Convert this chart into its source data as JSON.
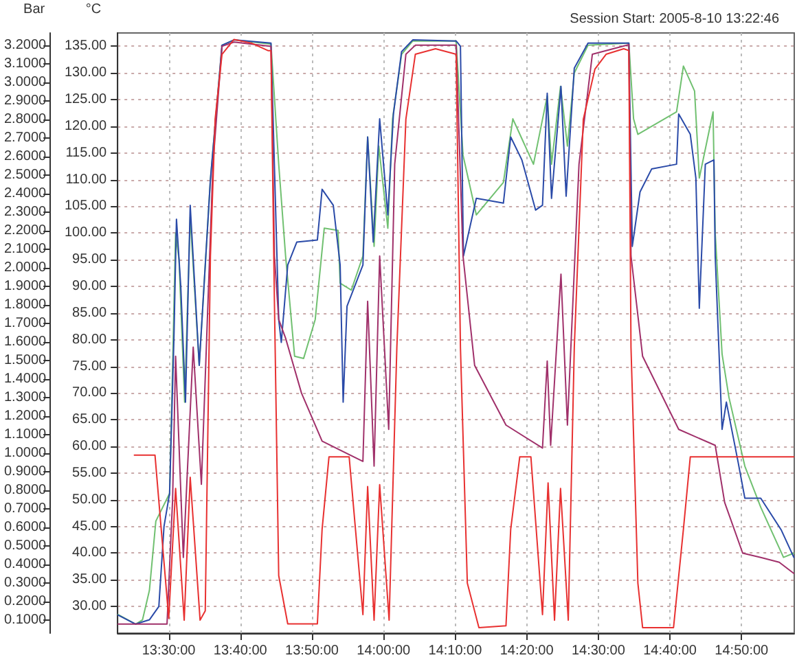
{
  "chart_data": {
    "type": "line",
    "title": "Session Start: 2005-8-10 13:22:46",
    "ylabel": "°C",
    "y2label": "Bar",
    "xlim": [
      13.381,
      14.956
    ],
    "xticks": [
      {
        "value": 13.5,
        "label": "13:30:00"
      },
      {
        "value": 13.666666666666666,
        "label": "13:40:00"
      },
      {
        "value": 13.833333333333334,
        "label": "13:50:00"
      },
      {
        "value": 14,
        "label": "14:00:00"
      },
      {
        "value": 14.166666666666666,
        "label": "14:10:00"
      },
      {
        "value": 14.333333333333334,
        "label": "14:20:00"
      },
      {
        "value": 14.5,
        "label": "14:30:00"
      },
      {
        "value": 14.666666666666666,
        "label": "14:40:00"
      },
      {
        "value": 14.833333333333334,
        "label": "14:50:00"
      }
    ],
    "ylim": [
      25,
      137.5
    ],
    "yticks": [
      {
        "value": 30,
        "label": "30.00"
      },
      {
        "value": 35,
        "label": "35.00"
      },
      {
        "value": 40,
        "label": "40.00"
      },
      {
        "value": 45,
        "label": "45.00"
      },
      {
        "value": 50,
        "label": "50.00"
      },
      {
        "value": 55,
        "label": "55.00"
      },
      {
        "value": 60,
        "label": "60.00"
      },
      {
        "value": 65,
        "label": "65.00"
      },
      {
        "value": 70,
        "label": "70.00"
      },
      {
        "value": 75,
        "label": "75.00"
      },
      {
        "value": 80,
        "label": "80.00"
      },
      {
        "value": 85,
        "label": "85.00"
      },
      {
        "value": 90,
        "label": "90.00"
      },
      {
        "value": 95,
        "label": "95.00"
      },
      {
        "value": 100,
        "label": "100.00"
      },
      {
        "value": 105,
        "label": "105.00"
      },
      {
        "value": 110,
        "label": "110.00"
      },
      {
        "value": 115,
        "label": "115.00"
      },
      {
        "value": 120,
        "label": "120.00"
      },
      {
        "value": 125,
        "label": "125.00"
      },
      {
        "value": 130,
        "label": "130.00"
      },
      {
        "value": 135,
        "label": "135.00"
      }
    ],
    "y2lim": [
      0.03,
      3.265
    ],
    "y2ticks": [
      {
        "value": 0.1,
        "label": "0.1000"
      },
      {
        "value": 0.2,
        "label": "0.2000"
      },
      {
        "value": 0.3,
        "label": "0.3000"
      },
      {
        "value": 0.4,
        "label": "0.4000"
      },
      {
        "value": 0.5,
        "label": "0.5000"
      },
      {
        "value": 0.6,
        "label": "0.6000"
      },
      {
        "value": 0.7,
        "label": "0.7000"
      },
      {
        "value": 0.8,
        "label": "0.8000"
      },
      {
        "value": 0.9,
        "label": "0.9000"
      },
      {
        "value": 1.0,
        "label": "1.0000"
      },
      {
        "value": 1.1,
        "label": "1.1000"
      },
      {
        "value": 1.2,
        "label": "1.2000"
      },
      {
        "value": 1.3,
        "label": "1.3000"
      },
      {
        "value": 1.4,
        "label": "1.4000"
      },
      {
        "value": 1.5,
        "label": "1.5000"
      },
      {
        "value": 1.6,
        "label": "1.6000"
      },
      {
        "value": 1.7,
        "label": "1.7000"
      },
      {
        "value": 1.8,
        "label": "1.8000"
      },
      {
        "value": 1.9,
        "label": "1.9000"
      },
      {
        "value": 2.0,
        "label": "2.0000"
      },
      {
        "value": 2.1,
        "label": "2.1000"
      },
      {
        "value": 2.2,
        "label": "2.2000"
      },
      {
        "value": 2.3,
        "label": "2.3000"
      },
      {
        "value": 2.4,
        "label": "2.4000"
      },
      {
        "value": 2.5,
        "label": "2.5000"
      },
      {
        "value": 2.6,
        "label": "2.6000"
      },
      {
        "value": 2.7,
        "label": "2.7000"
      },
      {
        "value": 2.8,
        "label": "2.8000"
      },
      {
        "value": 2.9,
        "label": "2.9000"
      },
      {
        "value": 3.0,
        "label": "3.0000"
      },
      {
        "value": 3.1,
        "label": "3.1000"
      },
      {
        "value": 3.2,
        "label": "3.2000"
      }
    ],
    "grid": true,
    "marker": "none",
    "line_style": "solid",
    "series": [
      {
        "color": "#70c070",
        "x": [
          13.382,
          13.423,
          13.439,
          13.455,
          13.47,
          13.502,
          13.509,
          13.516,
          13.524,
          13.537,
          13.55,
          13.571,
          13.597,
          13.624,
          13.652,
          13.738,
          13.756,
          13.772,
          13.793,
          13.814,
          13.841,
          13.862,
          13.894,
          13.899,
          13.925,
          13.952,
          13.963,
          13.978,
          13.989,
          14.01,
          14.021,
          14.042,
          14.068,
          14.169,
          14.185,
          14.216,
          14.279,
          14.301,
          14.349,
          14.381,
          14.391,
          14.412,
          14.428,
          14.444,
          14.476,
          14.571,
          14.582,
          14.592,
          14.682,
          14.698,
          14.724,
          14.735,
          14.767,
          14.772,
          14.788,
          14.804,
          14.841,
          14.878,
          14.931,
          14.955
        ],
        "values": [
          28.5,
          26.7,
          27.5,
          33,
          46,
          51.2,
          75,
          100,
          95,
          68.3,
          103,
          75.2,
          110,
          135.2,
          136.2,
          135.4,
          112.9,
          95.7,
          76.9,
          76.5,
          83.8,
          100.9,
          100.5,
          90.6,
          89.3,
          95.7,
          118,
          97.5,
          116.3,
          100.9,
          121.4,
          133.5,
          136,
          136,
          114.6,
          103.4,
          109.5,
          121.4,
          112.9,
          125.7,
          112.9,
          127.5,
          116.3,
          130,
          135.2,
          135.6,
          121.4,
          118.5,
          122.7,
          131.3,
          126.6,
          110.3,
          122.7,
          100,
          77.3,
          69.2,
          56.3,
          48.6,
          39.2,
          40
        ]
      },
      {
        "color": "#2a4aa8",
        "x": [
          13.382,
          13.423,
          13.455,
          13.477,
          13.489,
          13.502,
          13.512,
          13.518,
          13.528,
          13.539,
          13.55,
          13.571,
          13.597,
          13.624,
          13.652,
          13.738,
          13.756,
          13.762,
          13.777,
          13.798,
          13.846,
          13.857,
          13.883,
          13.899,
          13.906,
          13.915,
          13.952,
          13.963,
          13.976,
          13.991,
          14.01,
          14.023,
          14.042,
          14.068,
          14.169,
          14.179,
          14.186,
          14.216,
          14.279,
          14.296,
          14.322,
          14.354,
          14.37,
          14.381,
          14.391,
          14.413,
          14.425,
          14.444,
          14.476,
          14.571,
          14.579,
          14.597,
          14.624,
          14.682,
          14.687,
          14.714,
          14.727,
          14.735,
          14.749,
          14.769,
          14.772,
          14.788,
          14.798,
          14.825,
          14.841,
          14.878,
          14.926,
          14.955
        ],
        "values": [
          28.4,
          26.7,
          27.5,
          30,
          45,
          51.2,
          80,
          102.6,
          90,
          68.3,
          105.2,
          75.2,
          110,
          135.2,
          136.2,
          135.6,
          83.8,
          79.5,
          94,
          98.3,
          98.7,
          108.2,
          105.2,
          94,
          68.3,
          86.3,
          94,
          118,
          98.3,
          121.4,
          103.4,
          122.3,
          134,
          136.2,
          136,
          135,
          95.7,
          106.5,
          105.6,
          118,
          113.7,
          104.3,
          105.2,
          126.2,
          106.5,
          127.5,
          106.9,
          130.9,
          135.6,
          135.6,
          97.5,
          107.7,
          112,
          112.9,
          122.3,
          118.5,
          110.3,
          85.9,
          112.9,
          113.7,
          95.7,
          63.2,
          68.3,
          57.2,
          50.3,
          50.3,
          44.3,
          39.2
        ]
      },
      {
        "color": "#a0306a",
        "x": [
          13.382,
          13.496,
          13.509,
          13.516,
          13.534,
          13.557,
          13.576,
          13.603,
          13.624,
          13.652,
          13.738,
          13.746,
          13.756,
          13.772,
          13.809,
          13.857,
          13.952,
          13.963,
          13.978,
          13.991,
          14.012,
          14.026,
          14.052,
          14.074,
          14.169,
          14.185,
          14.212,
          14.285,
          14.37,
          14.381,
          14.389,
          14.413,
          14.428,
          14.455,
          14.486,
          14.571,
          14.576,
          14.603,
          14.687,
          14.772,
          14.794,
          14.836,
          14.878,
          14.921,
          14.955
        ],
        "values": [
          26.7,
          26.7,
          50,
          76.9,
          39.2,
          78.6,
          52.9,
          112.9,
          135,
          135.8,
          135,
          95.7,
          83.8,
          80.3,
          70,
          61,
          57.2,
          87.2,
          56.3,
          95.7,
          63.2,
          112.9,
          133.5,
          135.2,
          135.2,
          95.7,
          75.2,
          64,
          59.7,
          76,
          60.2,
          92.3,
          64,
          112.9,
          133.5,
          135.3,
          95.7,
          76.9,
          63.2,
          60.2,
          49.5,
          40,
          39.2,
          38.3,
          36.2
        ]
      },
      {
        "color": "#e83030",
        "axis": "y2",
        "x": [
          13.42,
          13.468,
          13.5,
          13.516,
          13.536,
          13.55,
          13.573,
          13.585,
          13.597,
          13.608,
          13.624,
          13.652,
          13.693,
          13.731,
          13.738,
          13.746,
          13.756,
          13.777,
          13.846,
          13.857,
          13.873,
          13.92,
          13.952,
          13.963,
          13.978,
          13.991,
          14.013,
          14.031,
          14.052,
          14.074,
          14.121,
          14.169,
          14.179,
          14.195,
          14.222,
          14.285,
          14.296,
          14.317,
          14.343,
          14.37,
          14.383,
          14.398,
          14.412,
          14.43,
          14.444,
          14.465,
          14.492,
          14.518,
          14.559,
          14.571,
          14.576,
          14.592,
          14.603,
          14.675,
          14.698,
          14.714,
          14.955
        ],
        "values": [
          0.99,
          0.99,
          0.11,
          0.81,
          0.1,
          0.87,
          0.1,
          0.15,
          2.06,
          2.8,
          3.15,
          3.23,
          3.21,
          3.17,
          3.17,
          1.82,
          0.34,
          0.08,
          0.08,
          0.59,
          0.98,
          0.98,
          0.13,
          0.82,
          0.1,
          0.83,
          0.1,
          1.57,
          2.8,
          3.15,
          3.18,
          3.15,
          1.57,
          0.3,
          0.06,
          0.07,
          0.59,
          0.98,
          0.98,
          0.13,
          0.84,
          0.1,
          0.81,
          0.1,
          1.57,
          2.8,
          3.07,
          3.15,
          3.18,
          3.17,
          1.57,
          0.3,
          0.06,
          0.06,
          0.59,
          0.98,
          0.98
        ]
      }
    ]
  }
}
